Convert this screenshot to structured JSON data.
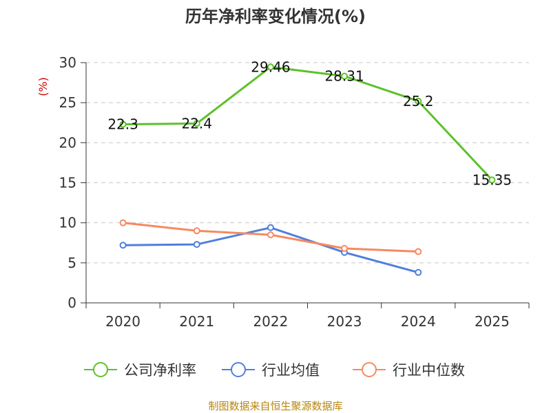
{
  "chart_data": {
    "type": "line",
    "title": "历年净利率变化情况(%)",
    "xlabel": "",
    "ylabel": "(%)",
    "categories": [
      "2020",
      "2021",
      "2022",
      "2023",
      "2024",
      "2025"
    ],
    "ylim": [
      0,
      30
    ],
    "yticks": [
      0,
      5,
      10,
      15,
      20,
      25,
      30
    ],
    "grid": true,
    "legend_position": "bottom",
    "series": [
      {
        "name": "公司净利率",
        "color": "#5cc129",
        "values": [
          22.3,
          22.4,
          29.46,
          28.31,
          25.2,
          15.35
        ],
        "labels": [
          "22.3",
          "22.4",
          "29.46",
          "28.31",
          "25.2",
          "15.35"
        ]
      },
      {
        "name": "行业均值",
        "color": "#4f7fdc",
        "values": [
          7.2,
          7.3,
          9.4,
          6.3,
          3.8,
          null
        ]
      },
      {
        "name": "行业中位数",
        "color": "#f6895f",
        "values": [
          10.0,
          9.0,
          8.5,
          6.8,
          6.4,
          null
        ]
      }
    ]
  },
  "footer": {
    "source": "制图数据来自恒生聚源数据库"
  }
}
